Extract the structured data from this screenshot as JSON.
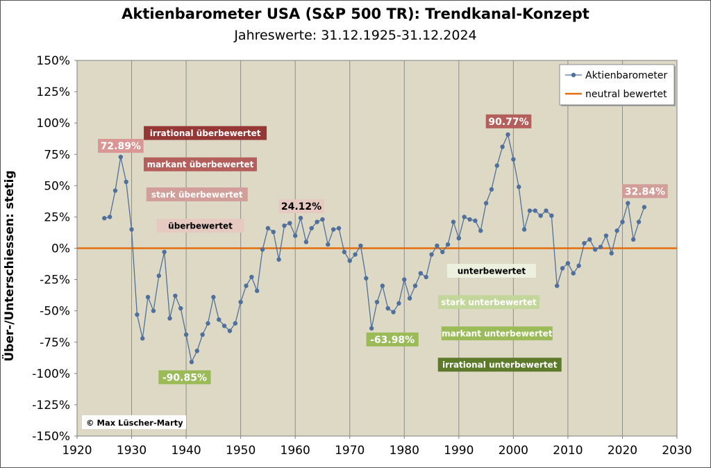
{
  "title": "Aktienbarometer USA (S&P 500 TR): Trendkanal-Konzept",
  "subtitle": "Jahreswerte: 31.12.1925-31.12.2024",
  "copyright": "© Max Lüscher-Marty",
  "colors": {
    "plot_bg": "#ddd9c4",
    "series": "#4f6f9c",
    "neutral": "#e46c0a",
    "grid": "#8c8c8c"
  },
  "chart_data": {
    "type": "line",
    "xlabel": "",
    "ylabel": "Über-/Unterschiessen: stetig",
    "xlim": [
      1920,
      2030
    ],
    "ylim": [
      -150,
      150
    ],
    "x_ticks": [
      1920,
      1930,
      1940,
      1950,
      1960,
      1970,
      1980,
      1990,
      2000,
      2010,
      2020,
      2030
    ],
    "y_ticks": [
      150,
      125,
      100,
      75,
      50,
      25,
      0,
      -25,
      -50,
      -75,
      -100,
      -125,
      -150
    ],
    "y_tick_labels": [
      "150%",
      "125%",
      "100%",
      "75%",
      "50%",
      "25%",
      "0%",
      "-25%",
      "-50%",
      "-75%",
      "-100%",
      "-125%",
      "-150%"
    ],
    "grid": "vertical",
    "legend": {
      "position": "top-right",
      "entries": [
        "Aktienbarometer",
        "neutral bewertet"
      ]
    },
    "series": [
      {
        "name": "Aktienbarometer",
        "x": [
          1925,
          1926,
          1927,
          1928,
          1929,
          1930,
          1931,
          1932,
          1933,
          1934,
          1935,
          1936,
          1937,
          1938,
          1939,
          1940,
          1941,
          1942,
          1943,
          1944,
          1945,
          1946,
          1947,
          1948,
          1949,
          1950,
          1951,
          1952,
          1953,
          1954,
          1955,
          1956,
          1957,
          1958,
          1959,
          1960,
          1961,
          1962,
          1963,
          1964,
          1965,
          1966,
          1967,
          1968,
          1969,
          1970,
          1971,
          1972,
          1973,
          1974,
          1975,
          1976,
          1977,
          1978,
          1979,
          1980,
          1981,
          1982,
          1983,
          1984,
          1985,
          1986,
          1987,
          1988,
          1989,
          1990,
          1991,
          1992,
          1993,
          1994,
          1995,
          1996,
          1997,
          1998,
          1999,
          2000,
          2001,
          2002,
          2003,
          2004,
          2005,
          2006,
          2007,
          2008,
          2009,
          2010,
          2011,
          2012,
          2013,
          2014,
          2015,
          2016,
          2017,
          2018,
          2019,
          2020,
          2021,
          2022,
          2023,
          2024
        ],
        "values": [
          24,
          25,
          46,
          72.89,
          53,
          15,
          -53,
          -72,
          -39,
          -50,
          -22,
          -3,
          -56,
          -38,
          -48,
          -69,
          -90.85,
          -82,
          -69,
          -60,
          -39,
          -57,
          -62,
          -66,
          -60,
          -43,
          -30,
          -23,
          -34,
          -1,
          16,
          13,
          -9,
          18,
          20,
          10,
          24.12,
          5,
          16,
          21,
          23,
          3,
          15,
          16,
          -3,
          -10,
          -5,
          2,
          -24,
          -63.98,
          -43,
          -30,
          -48,
          -51,
          -44,
          -25,
          -40,
          -30,
          -20,
          -23,
          -5,
          2,
          -3,
          3,
          21,
          8,
          25,
          23,
          22,
          14,
          36,
          47,
          66,
          81,
          90.77,
          71,
          49,
          15,
          30,
          30,
          26,
          30,
          26,
          -30,
          -16,
          -12,
          -20,
          -14,
          4,
          7,
          -1,
          1,
          10,
          -4,
          14,
          21,
          36,
          7,
          21,
          32.84
        ]
      },
      {
        "name": "neutral bewertet",
        "x": [
          1920,
          2030
        ],
        "values": [
          0,
          0
        ]
      }
    ],
    "callouts": [
      {
        "label": "72.89%",
        "year": 1928,
        "value": 72.89
      },
      {
        "label": "-90.85%",
        "year": 1941,
        "value": -90.85
      },
      {
        "label": "24.12%",
        "year": 1961,
        "value": 24.12
      },
      {
        "label": "-63.98%",
        "year": 1974,
        "value": -63.98
      },
      {
        "label": "90.77%",
        "year": 1999,
        "value": 90.77
      },
      {
        "label": "32.84%",
        "year": 2024,
        "value": 32.84
      }
    ],
    "zone_labels": [
      {
        "text": "irrational überbewertet",
        "color": "#953735",
        "text_color": "#ffffff"
      },
      {
        "text": "markant überbewertet",
        "color": "#b45f5b",
        "text_color": "#ffffff"
      },
      {
        "text": "stark überbewertet",
        "color": "#d29e99",
        "text_color": "#ffffff"
      },
      {
        "text": "überbewertet",
        "color": "#e6c9c1",
        "text_color": "#000000"
      },
      {
        "text": "unterbewertet",
        "color": "#ebf1de",
        "text_color": "#000000"
      },
      {
        "text": "stark unterbewertet",
        "color": "#c3d69b",
        "text_color": "#ffffff"
      },
      {
        "text": "markant unterbewertet",
        "color": "#9bbb59",
        "text_color": "#ffffff"
      },
      {
        "text": "irrational unterbewertet",
        "color": "#5d7a2a",
        "text_color": "#ffffff"
      }
    ]
  }
}
